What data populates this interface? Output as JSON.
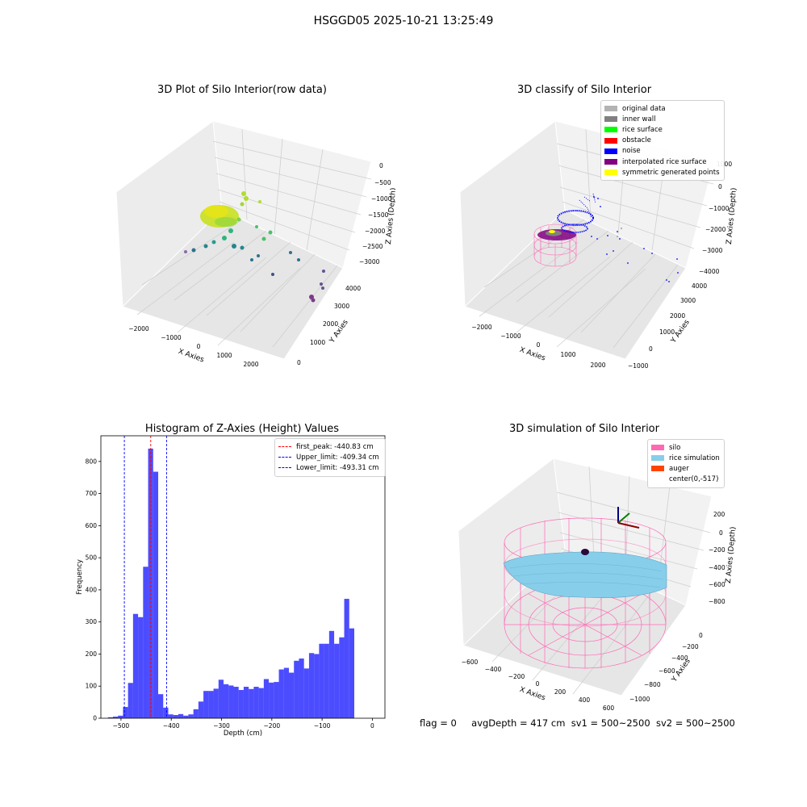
{
  "suptitle": "HSGGD05 2025-10-21 13:25:49",
  "panels": {
    "raw": {
      "title": "3D Plot of Silo Interior(row data)",
      "xlabel": "X Axies",
      "ylabel": "Y Axies",
      "zlabel": "Z Axies (Depth)",
      "xticks": [
        "−2000",
        "−1000",
        "0",
        "1000",
        "2000"
      ],
      "yticks": [
        "0",
        "1000",
        "2000",
        "3000",
        "4000"
      ],
      "zticks": [
        "0",
        "−500",
        "−1000",
        "−1500",
        "−2000",
        "−2500",
        "−3000"
      ]
    },
    "classify": {
      "title": "3D classify of Silo Interior",
      "xlabel": "X Axies",
      "ylabel": "Y Axies",
      "zlabel": "Z Axies (Depth)",
      "xticks": [
        "−2000",
        "−1000",
        "0",
        "1000",
        "2000"
      ],
      "yticks": [
        "−1000",
        "0",
        "1000",
        "2000",
        "3000",
        "4000"
      ],
      "zticks": [
        "1000",
        "0",
        "−1000",
        "−2000",
        "−3000",
        "−4000"
      ],
      "legend": [
        {
          "label": "original data",
          "color": "#b3b3b3"
        },
        {
          "label": "inner wall",
          "color": "#808080"
        },
        {
          "label": "rice surface",
          "color": "#00ff00"
        },
        {
          "label": "obstacle",
          "color": "#ff0000"
        },
        {
          "label": "noise",
          "color": "#0000ff"
        },
        {
          "label": "interpolated rice surface",
          "color": "#800080"
        },
        {
          "label": "symmetric generated points",
          "color": "#ffff00"
        }
      ]
    },
    "simulation": {
      "title": "3D simulation of Silo Interior",
      "xlabel": "X Axies",
      "ylabel": "Y Axies",
      "zlabel": "Z Axies (Depth)",
      "xticks": [
        "−600",
        "−400",
        "−200",
        "0",
        "200",
        "400",
        "600"
      ],
      "yticks": [
        "−1000",
        "−800",
        "−600",
        "−400",
        "−200",
        "0"
      ],
      "zticks": [
        "200",
        "0",
        "−200",
        "−400",
        "−600",
        "−800"
      ],
      "legend": [
        {
          "label": "silo",
          "color": "#ff69b4"
        },
        {
          "label": "rice simulation",
          "color": "#87ceeb"
        },
        {
          "label": "auger",
          "color": "#ff4500"
        },
        {
          "label": "center(0,-517)",
          "color": ""
        }
      ]
    }
  },
  "status": {
    "flag": "flag = 0",
    "avg": "avgDepth = 417 cm",
    "sv1": "sv1 = 500~2500",
    "sv2": "sv2 = 500~2500"
  },
  "chart_data": [
    {
      "type": "bar",
      "title": "Histogram of Z-Axies (Height) Values",
      "xlabel": "Depth (cm)",
      "ylabel": "Frequency",
      "xlim": [
        -540,
        25
      ],
      "ylim": [
        0,
        880
      ],
      "xticks": [
        -500,
        -400,
        -300,
        -200,
        -100,
        0
      ],
      "yticks": [
        0,
        100,
        200,
        300,
        400,
        500,
        600,
        700,
        800
      ],
      "bin_start": -526,
      "bin_width": 10,
      "values": [
        3,
        5,
        8,
        35,
        110,
        325,
        315,
        472,
        840,
        768,
        75,
        33,
        12,
        10,
        13,
        8,
        12,
        28,
        52,
        85,
        85,
        92,
        120,
        106,
        102,
        98,
        88,
        98,
        91,
        98,
        94,
        122,
        111,
        113,
        152,
        157,
        142,
        179,
        186,
        155,
        203,
        200,
        232,
        232,
        272,
        232,
        252,
        372,
        280
      ],
      "color": "#0000ff",
      "vlines": [
        {
          "label": "first_peak: -440.83 cm",
          "x": -440.83,
          "color": "#ff0000"
        },
        {
          "label": "Upper_limit: -409.34 cm",
          "x": -409.34,
          "color": "#0000ff"
        },
        {
          "label": "Lower_limit: -493.31 cm",
          "x": -493.31,
          "color": "#0000ff"
        }
      ],
      "legend_position": "upper right"
    }
  ]
}
